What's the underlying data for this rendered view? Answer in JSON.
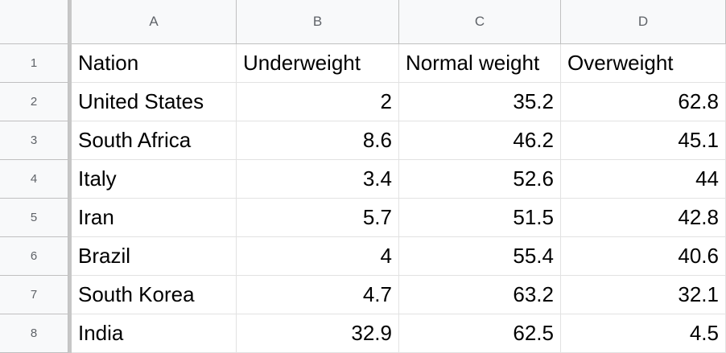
{
  "sheet": {
    "columns": [
      "A",
      "B",
      "C",
      "D"
    ],
    "row_numbers": [
      "1",
      "2",
      "3",
      "4",
      "5",
      "6",
      "7",
      "8"
    ],
    "rows": [
      [
        "Nation",
        "Underweight",
        "Normal weight",
        "Overweight"
      ],
      [
        "United States",
        "2",
        "35.2",
        "62.8"
      ],
      [
        "South Africa",
        "8.6",
        "46.2",
        "45.1"
      ],
      [
        "Italy",
        "3.4",
        "52.6",
        "44"
      ],
      [
        "Iran",
        "5.7",
        "51.5",
        "42.8"
      ],
      [
        "Brazil",
        "4",
        "55.4",
        "40.6"
      ],
      [
        "South Korea",
        "4.7",
        "63.2",
        "32.1"
      ],
      [
        "India",
        "32.9",
        "62.5",
        "4.5"
      ]
    ]
  },
  "chart_data": {
    "type": "table",
    "columns": [
      "Nation",
      "Underweight",
      "Normal weight",
      "Overweight"
    ],
    "rows": [
      [
        "United States",
        2,
        35.2,
        62.8
      ],
      [
        "South Africa",
        8.6,
        46.2,
        45.1
      ],
      [
        "Italy",
        3.4,
        52.6,
        44
      ],
      [
        "Iran",
        5.7,
        51.5,
        42.8
      ],
      [
        "Brazil",
        4,
        55.4,
        40.6
      ],
      [
        "South Korea",
        4.7,
        63.2,
        32.1
      ],
      [
        "India",
        32.9,
        62.5,
        4.5
      ]
    ]
  }
}
